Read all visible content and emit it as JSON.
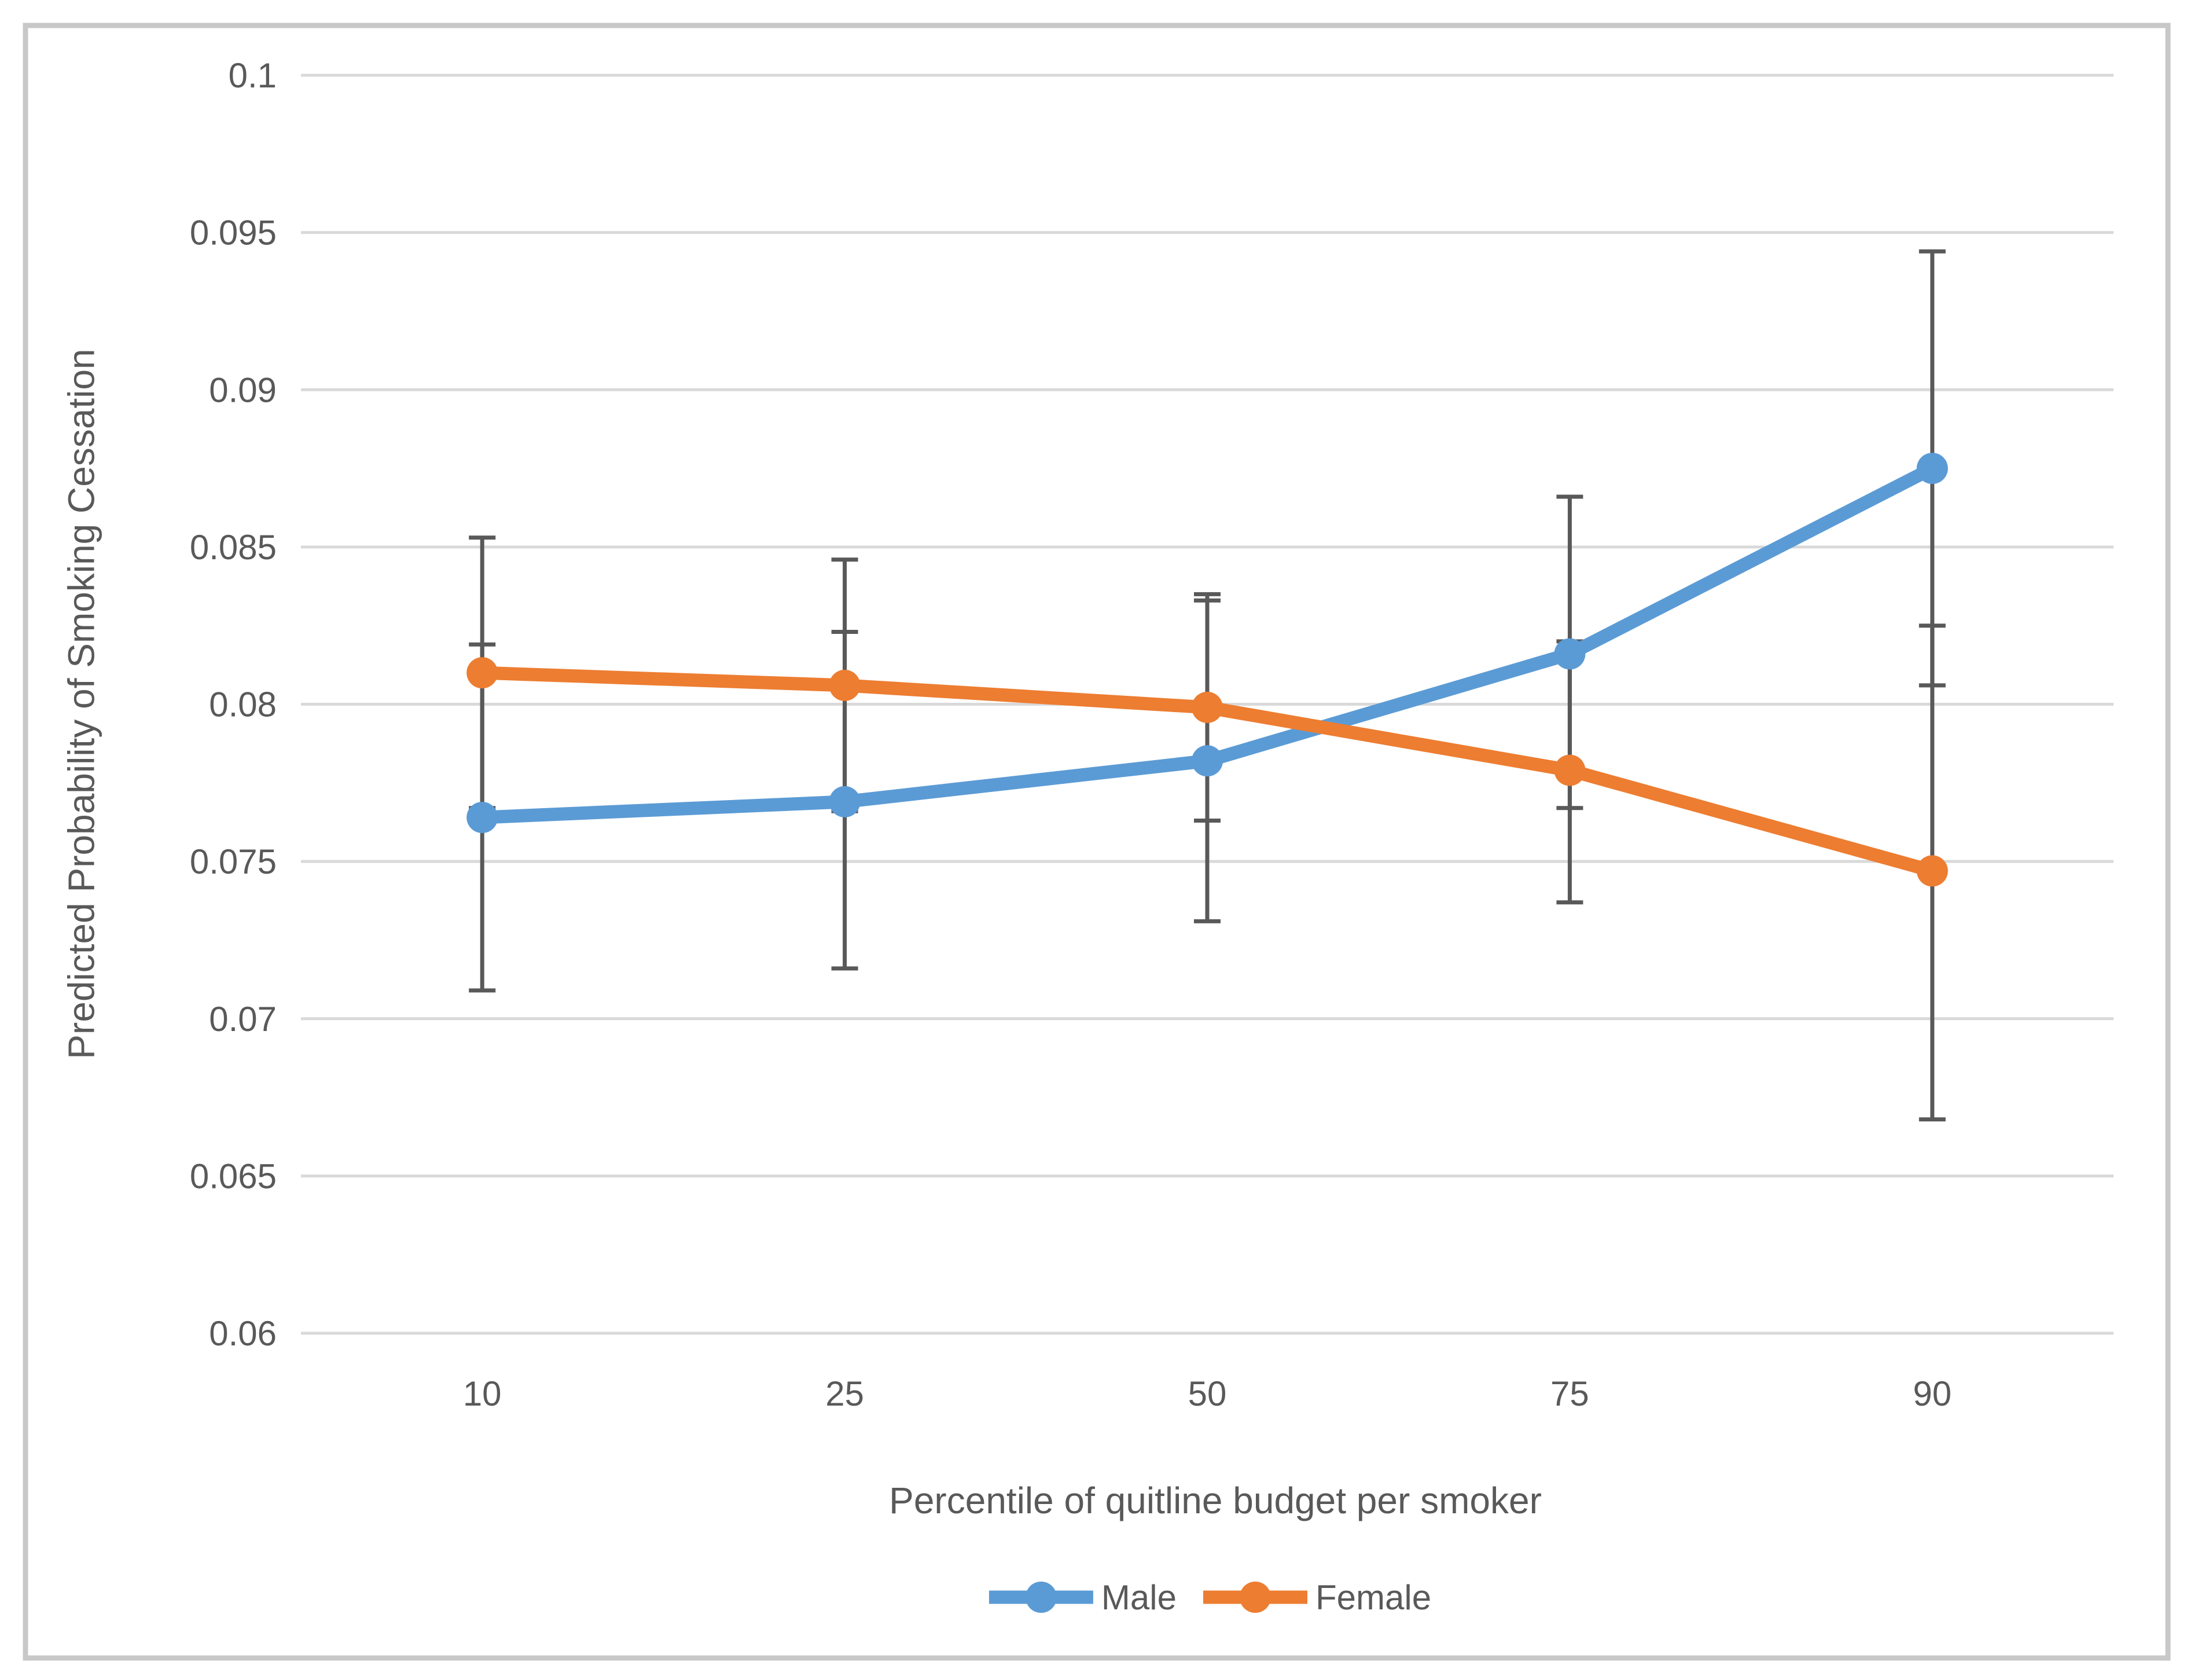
{
  "figure": {
    "background_color": "#FFFFFF",
    "border_color": "#C8C8C8"
  },
  "chart_data": {
    "type": "line",
    "title": "",
    "xlabel": "Percentile of quitline budget per smoker",
    "ylabel": "Predicted Probability of Smoking Cessation",
    "categories": [
      "10",
      "25",
      "50",
      "75",
      "90"
    ],
    "y_axis": {
      "min": 0.06,
      "max": 0.1,
      "tick_values": [
        0.1,
        0.095,
        0.09,
        0.085,
        0.08,
        0.075,
        0.07,
        0.065,
        0.06
      ],
      "tick_labels": [
        "0.1",
        "0.095",
        "0.09",
        "0.085",
        "0.08",
        "0.075",
        "0.07",
        "0.065",
        "0.06"
      ]
    },
    "grid": true,
    "gridline_color": "#D9D9D9",
    "error_bar_color": "#595959",
    "text_color": "#595959",
    "legend_position": "bottom",
    "series": [
      {
        "name": "Male",
        "color": "#5B9BD5",
        "values": [
          0.0764,
          0.0769,
          0.0782,
          0.0816,
          0.0875
        ],
        "ci_lower": [
          0.0709,
          0.0716,
          0.0731,
          0.0767,
          0.0806
        ],
        "ci_upper": [
          0.0819,
          0.0823,
          0.0833,
          0.0866,
          0.0944
        ]
      },
      {
        "name": "Female",
        "color": "#ED7D31",
        "values": [
          0.081,
          0.0806,
          0.0799,
          0.0779,
          0.0747
        ],
        "ci_lower": [
          0.0767,
          0.0766,
          0.0763,
          0.0737,
          0.0668
        ],
        "ci_upper": [
          0.0853,
          0.0846,
          0.0835,
          0.082,
          0.0825
        ]
      }
    ]
  }
}
